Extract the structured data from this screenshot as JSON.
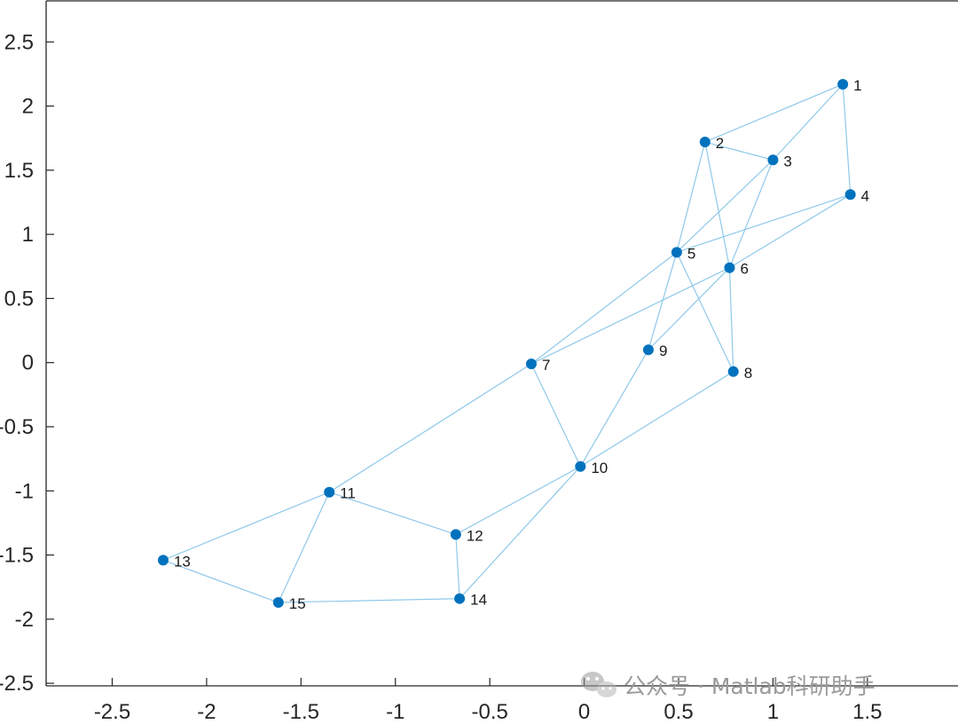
{
  "chart_data": {
    "type": "graph",
    "xlim": [
      -2.85,
      1.98
    ],
    "ylim": [
      -2.52,
      2.82
    ],
    "x_ticks": [
      -2.5,
      -2,
      -1.5,
      -1,
      -0.5,
      0,
      0.5,
      1,
      1.5
    ],
    "x_tick_labels": [
      "-2.5",
      "-2",
      "-1.5",
      "-1",
      "-0.5",
      "0",
      "0.5",
      "1",
      "1.5"
    ],
    "y_ticks": [
      -2.5,
      -2,
      -1.5,
      -1,
      -0.5,
      0,
      0.5,
      1,
      1.5,
      2,
      2.5
    ],
    "y_tick_labels": [
      "-2.5",
      "-2",
      "-1.5",
      "-1",
      "-0.5",
      "0",
      "0.5",
      "1",
      "1.5",
      "2",
      "2.5"
    ],
    "grid": false,
    "node_color": "#0072bd",
    "edge_color": "#8fc9ea",
    "nodes": [
      {
        "label": "1",
        "x": 1.37,
        "y": 2.17
      },
      {
        "label": "2",
        "x": 0.64,
        "y": 1.72
      },
      {
        "label": "3",
        "x": 1.0,
        "y": 1.58
      },
      {
        "label": "4",
        "x": 1.41,
        "y": 1.31
      },
      {
        "label": "5",
        "x": 0.49,
        "y": 0.86
      },
      {
        "label": "6",
        "x": 0.77,
        "y": 0.74
      },
      {
        "label": "7",
        "x": -0.28,
        "y": -0.01
      },
      {
        "label": "8",
        "x": 0.79,
        "y": -0.07
      },
      {
        "label": "9",
        "x": 0.34,
        "y": 0.1
      },
      {
        "label": "10",
        "x": -0.02,
        "y": -0.81
      },
      {
        "label": "11",
        "x": -1.35,
        "y": -1.01
      },
      {
        "label": "12",
        "x": -0.68,
        "y": -1.34
      },
      {
        "label": "13",
        "x": -2.23,
        "y": -1.54
      },
      {
        "label": "14",
        "x": -0.66,
        "y": -1.84
      },
      {
        "label": "15",
        "x": -1.62,
        "y": -1.87
      }
    ],
    "edges": [
      [
        1,
        2
      ],
      [
        1,
        3
      ],
      [
        1,
        4
      ],
      [
        2,
        3
      ],
      [
        2,
        5
      ],
      [
        2,
        6
      ],
      [
        3,
        5
      ],
      [
        3,
        6
      ],
      [
        4,
        5
      ],
      [
        4,
        6
      ],
      [
        5,
        7
      ],
      [
        5,
        8
      ],
      [
        5,
        9
      ],
      [
        6,
        7
      ],
      [
        6,
        8
      ],
      [
        6,
        9
      ],
      [
        7,
        10
      ],
      [
        7,
        11
      ],
      [
        9,
        10
      ],
      [
        8,
        10
      ],
      [
        10,
        12
      ],
      [
        10,
        14
      ],
      [
        11,
        12
      ],
      [
        11,
        13
      ],
      [
        11,
        15
      ],
      [
        12,
        14
      ],
      [
        13,
        15
      ],
      [
        14,
        15
      ]
    ]
  },
  "watermark": {
    "text": "公众号 · Matlab科研助手",
    "icon": "wechat-icon"
  }
}
